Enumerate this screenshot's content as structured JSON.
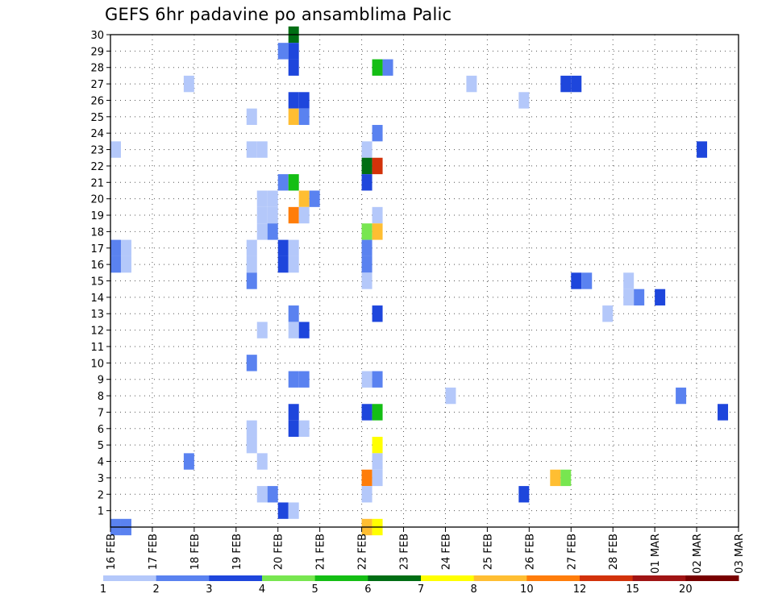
{
  "chart_data": {
    "type": "heatmap",
    "title": "GEFS 6hr padavine po ansamblima Palic",
    "xlabel": "",
    "ylabel": "",
    "x_unit": "days since 16 FEB (6-hour steps)",
    "xlim": [
      0,
      15
    ],
    "ylim": [
      0,
      30
    ],
    "grid": true,
    "x_tick_labels": [
      "16 FEB",
      "17 FEB",
      "18 FEB",
      "19 FEB",
      "20 FEB",
      "21 FEB",
      "22 FEB",
      "23 FEB",
      "24 FEB",
      "25 FEB",
      "26 FEB",
      "27 FEB",
      "28 FEB",
      "01 MAR",
      "02 MAR",
      "03 MAR"
    ],
    "y_tick_labels": [
      "1",
      "2",
      "3",
      "4",
      "5",
      "6",
      "7",
      "8",
      "9",
      "10",
      "11",
      "12",
      "13",
      "14",
      "15",
      "16",
      "17",
      "18",
      "19",
      "20",
      "21",
      "22",
      "23",
      "24",
      "25",
      "26",
      "27",
      "28",
      "29",
      "30"
    ],
    "legend": {
      "placement": "bottom",
      "labels": [
        "1",
        "2",
        "3",
        "4",
        "5",
        "6",
        "7",
        "8",
        "10",
        "12",
        "15",
        "20"
      ],
      "colors": [
        "#b4c8fa",
        "#5a82f0",
        "#1e46dc",
        "#78e650",
        "#14be14",
        "#006e14",
        "#ffff00",
        "#ffbe32",
        "#ff7d0a",
        "#d2320a",
        "#a01414",
        "#780000"
      ]
    },
    "cells": [
      {
        "x": 4.25,
        "y": 30,
        "c": 5
      },
      {
        "x": 0.0,
        "y": 0,
        "c": 1
      },
      {
        "x": 0.25,
        "y": 0,
        "c": 1
      },
      {
        "x": 6.0,
        "y": 0,
        "c": 7
      },
      {
        "x": 6.25,
        "y": 0,
        "c": 6
      },
      {
        "x": 4.0,
        "y": 29,
        "c": 1
      },
      {
        "x": 4.25,
        "y": 29,
        "c": 2
      },
      {
        "x": 4.25,
        "y": 28,
        "c": 2
      },
      {
        "x": 6.25,
        "y": 28,
        "c": 4
      },
      {
        "x": 6.5,
        "y": 28,
        "c": 1
      },
      {
        "x": 1.75,
        "y": 27,
        "c": 0
      },
      {
        "x": 8.5,
        "y": 27,
        "c": 0
      },
      {
        "x": 10.75,
        "y": 27,
        "c": 2
      },
      {
        "x": 11.0,
        "y": 27,
        "c": 2
      },
      {
        "x": 4.25,
        "y": 26,
        "c": 2
      },
      {
        "x": 4.5,
        "y": 26,
        "c": 2
      },
      {
        "x": 9.75,
        "y": 26,
        "c": 0
      },
      {
        "x": 3.25,
        "y": 25,
        "c": 0
      },
      {
        "x": 4.25,
        "y": 25,
        "c": 7
      },
      {
        "x": 4.5,
        "y": 25,
        "c": 1
      },
      {
        "x": 6.25,
        "y": 24,
        "c": 1
      },
      {
        "x": 0.0,
        "y": 23,
        "c": 0
      },
      {
        "x": 3.25,
        "y": 23,
        "c": 0
      },
      {
        "x": 3.5,
        "y": 23,
        "c": 0
      },
      {
        "x": 6.0,
        "y": 23,
        "c": 0
      },
      {
        "x": 14.0,
        "y": 23,
        "c": 2
      },
      {
        "x": 6.0,
        "y": 22,
        "c": 5
      },
      {
        "x": 6.25,
        "y": 22,
        "c": 9
      },
      {
        "x": 4.0,
        "y": 21,
        "c": 1
      },
      {
        "x": 4.25,
        "y": 21,
        "c": 4
      },
      {
        "x": 6.0,
        "y": 21,
        "c": 2
      },
      {
        "x": 3.5,
        "y": 20,
        "c": 0
      },
      {
        "x": 3.75,
        "y": 20,
        "c": 0
      },
      {
        "x": 4.5,
        "y": 20,
        "c": 7
      },
      {
        "x": 4.75,
        "y": 20,
        "c": 1
      },
      {
        "x": 3.5,
        "y": 19,
        "c": 0
      },
      {
        "x": 3.75,
        "y": 19,
        "c": 0
      },
      {
        "x": 4.25,
        "y": 19,
        "c": 8
      },
      {
        "x": 4.5,
        "y": 19,
        "c": 0
      },
      {
        "x": 6.25,
        "y": 19,
        "c": 0
      },
      {
        "x": 3.5,
        "y": 18,
        "c": 0
      },
      {
        "x": 3.75,
        "y": 18,
        "c": 1
      },
      {
        "x": 6.0,
        "y": 18,
        "c": 3
      },
      {
        "x": 6.25,
        "y": 18,
        "c": 7
      },
      {
        "x": 0.0,
        "y": 17,
        "c": 1
      },
      {
        "x": 0.25,
        "y": 17,
        "c": 0
      },
      {
        "x": 3.25,
        "y": 17,
        "c": 0
      },
      {
        "x": 4.0,
        "y": 17,
        "c": 2
      },
      {
        "x": 4.25,
        "y": 17,
        "c": 0
      },
      {
        "x": 6.0,
        "y": 17,
        "c": 1
      },
      {
        "x": 0.0,
        "y": 16,
        "c": 1
      },
      {
        "x": 0.25,
        "y": 16,
        "c": 0
      },
      {
        "x": 3.25,
        "y": 16,
        "c": 0
      },
      {
        "x": 4.0,
        "y": 16,
        "c": 2
      },
      {
        "x": 4.25,
        "y": 16,
        "c": 0
      },
      {
        "x": 6.0,
        "y": 16,
        "c": 1
      },
      {
        "x": 3.25,
        "y": 15,
        "c": 1
      },
      {
        "x": 6.0,
        "y": 15,
        "c": 0
      },
      {
        "x": 11.0,
        "y": 15,
        "c": 2
      },
      {
        "x": 11.25,
        "y": 15,
        "c": 1
      },
      {
        "x": 12.25,
        "y": 15,
        "c": 0
      },
      {
        "x": 12.25,
        "y": 14,
        "c": 0
      },
      {
        "x": 12.5,
        "y": 14,
        "c": 1
      },
      {
        "x": 13.0,
        "y": 14,
        "c": 2
      },
      {
        "x": 4.25,
        "y": 13,
        "c": 1
      },
      {
        "x": 6.25,
        "y": 13,
        "c": 2
      },
      {
        "x": 11.75,
        "y": 13,
        "c": 0
      },
      {
        "x": 3.5,
        "y": 12,
        "c": 0
      },
      {
        "x": 4.25,
        "y": 12,
        "c": 0
      },
      {
        "x": 4.5,
        "y": 12,
        "c": 2
      },
      {
        "x": 3.25,
        "y": 10,
        "c": 1
      },
      {
        "x": 4.25,
        "y": 9,
        "c": 1
      },
      {
        "x": 4.5,
        "y": 9,
        "c": 1
      },
      {
        "x": 6.0,
        "y": 9,
        "c": 0
      },
      {
        "x": 6.25,
        "y": 9,
        "c": 1
      },
      {
        "x": 8.0,
        "y": 8,
        "c": 0
      },
      {
        "x": 13.5,
        "y": 8,
        "c": 1
      },
      {
        "x": 4.25,
        "y": 7,
        "c": 2
      },
      {
        "x": 6.0,
        "y": 7,
        "c": 2
      },
      {
        "x": 6.25,
        "y": 7,
        "c": 4
      },
      {
        "x": 14.5,
        "y": 7,
        "c": 2
      },
      {
        "x": 3.25,
        "y": 6,
        "c": 0
      },
      {
        "x": 4.25,
        "y": 6,
        "c": 2
      },
      {
        "x": 4.5,
        "y": 6,
        "c": 0
      },
      {
        "x": 3.25,
        "y": 5,
        "c": 0
      },
      {
        "x": 6.25,
        "y": 5,
        "c": 6
      },
      {
        "x": 1.75,
        "y": 4,
        "c": 1
      },
      {
        "x": 3.5,
        "y": 4,
        "c": 0
      },
      {
        "x": 6.25,
        "y": 4,
        "c": 0
      },
      {
        "x": 6.0,
        "y": 3,
        "c": 8
      },
      {
        "x": 6.25,
        "y": 3,
        "c": 0
      },
      {
        "x": 10.5,
        "y": 3,
        "c": 7
      },
      {
        "x": 10.75,
        "y": 3,
        "c": 3
      },
      {
        "x": 3.5,
        "y": 2,
        "c": 0
      },
      {
        "x": 3.75,
        "y": 2,
        "c": 1
      },
      {
        "x": 6.0,
        "y": 2,
        "c": 0
      },
      {
        "x": 9.75,
        "y": 2,
        "c": 2
      },
      {
        "x": 4.0,
        "y": 1,
        "c": 2
      },
      {
        "x": 4.25,
        "y": 1,
        "c": 0
      }
    ]
  }
}
